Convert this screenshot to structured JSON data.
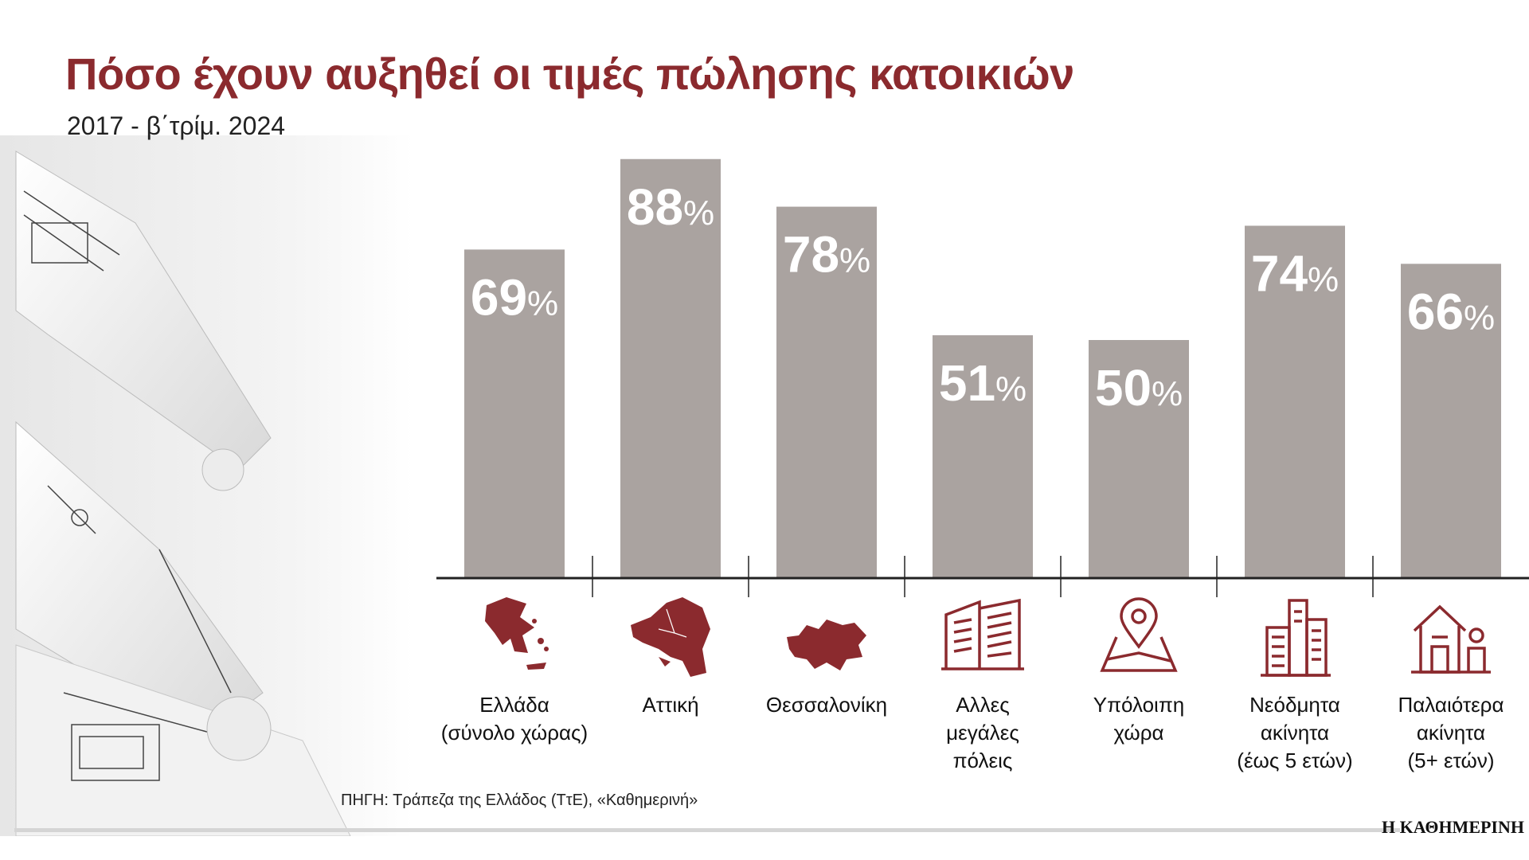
{
  "title": "Πόσο έχουν αυξηθεί οι τιμές πώλησης κατοικιών",
  "subtitle": "2017 - β΄τρίμ. 2024",
  "source": "ΠΗΓΗ: Τράπεζα της Ελλάδος (ΤτΕ), «Καθημερινή»",
  "brand": "Η ΚΑΘΗΜΕΡΙΝΗ",
  "colors": {
    "bar": "#aaa3a0",
    "accent": "#8b2a2e",
    "axis": "#222222"
  },
  "icons": [
    "greece-map-icon",
    "attica-map-icon",
    "thessaloniki-map-icon",
    "buildings-icon",
    "location-pin-map-icon",
    "new-buildings-icon",
    "house-person-icon"
  ],
  "categories": [
    "Ελλάδα\n(σύνολο χώρας)",
    "Αττική",
    "Θεσσαλονίκη",
    "Αλλες\nμεγάλες\nπόλεις",
    "Υπόλοιπη\nχώρα",
    "Νεόδμητα\nακίνητα\n(έως 5 ετών)",
    "Παλαιότερα\nακίνητα\n(5+ ετών)"
  ],
  "chart_data": {
    "type": "bar",
    "title": "Πόσο έχουν αυξηθεί οι τιμές πώλησης κατοικιών",
    "subtitle": "2017 - β΄τρίμ. 2024",
    "categories": [
      "Ελλάδα (σύνολο χώρας)",
      "Αττική",
      "Θεσσαλονίκη",
      "Αλλες μεγάλες πόλεις",
      "Υπόλοιπη χώρα",
      "Νεόδμητα ακίνητα (έως 5 ετών)",
      "Παλαιότερα ακίνητα (5+ ετών)"
    ],
    "values": [
      69,
      88,
      78,
      51,
      50,
      74,
      66
    ],
    "value_labels": [
      "69",
      "88",
      "78",
      "51",
      "50",
      "74",
      "66"
    ],
    "unit": "%",
    "ylim": [
      0,
      100
    ],
    "grid": false,
    "legend": "none"
  }
}
